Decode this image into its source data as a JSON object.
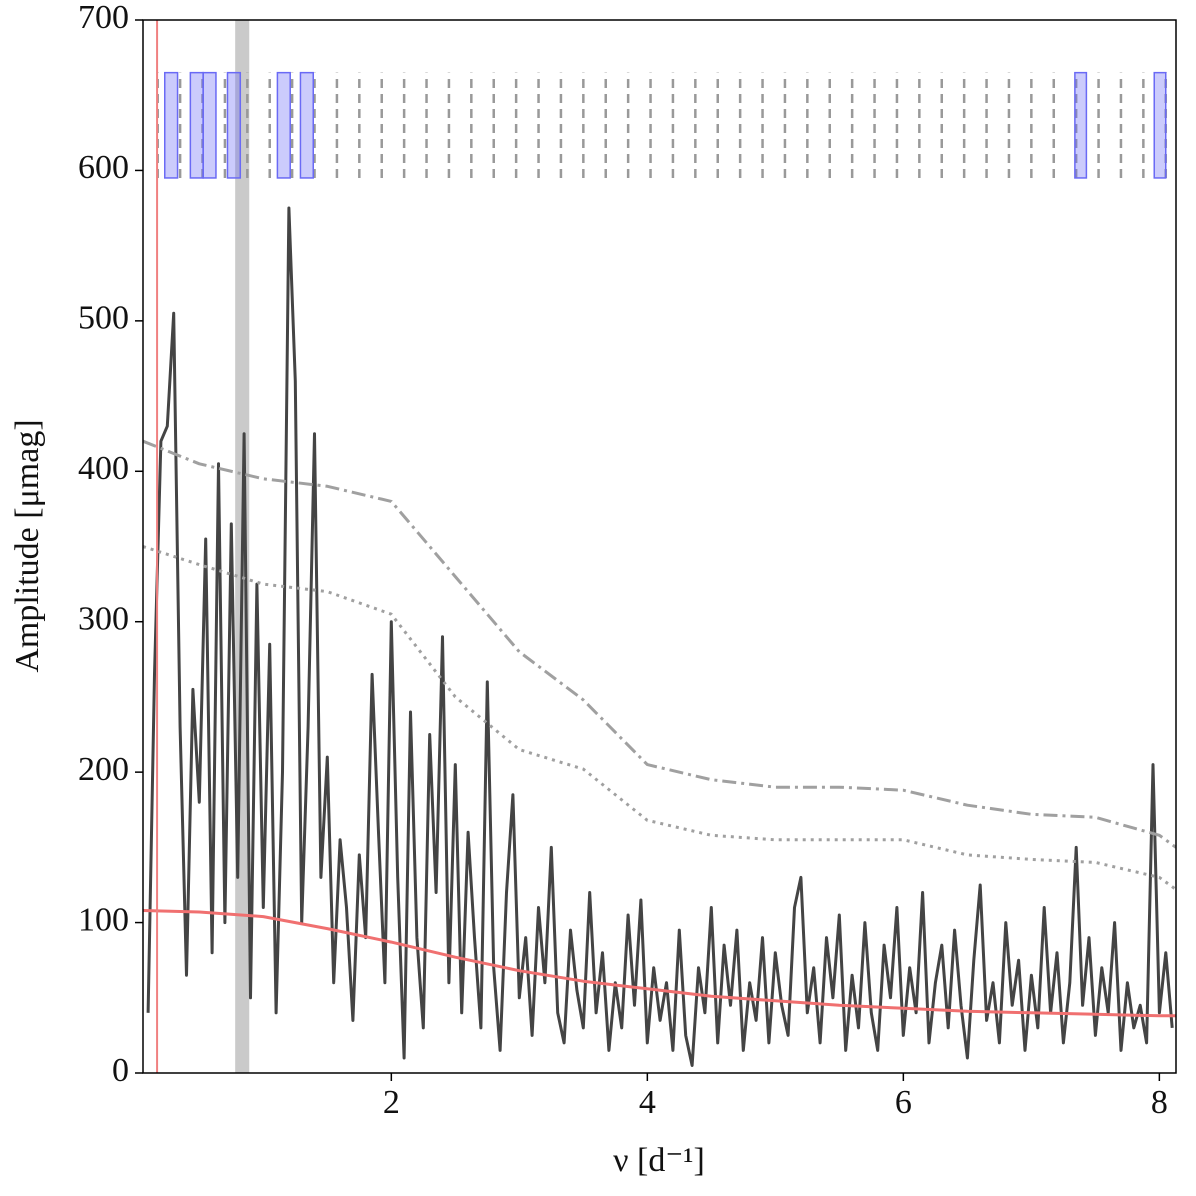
{
  "chart_data": {
    "type": "line",
    "xlabel": "ν [d⁻¹]",
    "ylabel": "Amplitude [μmag]",
    "xlim": [
      0.06,
      8.13
    ],
    "ylim": [
      0,
      700
    ],
    "xticks": [
      2,
      4,
      6,
      8
    ],
    "yticks": [
      0,
      100,
      200,
      300,
      400,
      500,
      600,
      700
    ],
    "vline": {
      "x": 0.17,
      "color": "#f08080"
    },
    "vspan": {
      "x": [
        0.78,
        0.89
      ],
      "color": "#bdbdbd"
    },
    "marker_ylim": [
      595,
      665
    ],
    "harmonics": {
      "color": "#999999",
      "x": [
        0.175,
        0.35,
        0.525,
        0.7,
        0.875,
        1.05,
        1.225,
        1.4,
        1.575,
        1.75,
        1.925,
        2.1,
        2.275,
        2.45,
        2.625,
        2.8,
        2.975,
        3.15,
        3.325,
        3.5,
        3.675,
        3.85,
        4.025,
        4.2,
        4.375,
        4.55,
        4.725,
        4.9,
        5.075,
        5.25,
        5.425,
        5.6,
        5.775,
        5.95,
        6.125,
        6.3,
        6.475,
        6.65,
        6.825,
        7.0,
        7.175,
        7.35,
        7.525,
        7.7,
        7.875,
        8.05
      ]
    },
    "boxes": {
      "color": "#6a6af5",
      "ranges": [
        [
          0.23,
          0.33
        ],
        [
          0.43,
          0.53
        ],
        [
          0.53,
          0.63
        ],
        [
          0.72,
          0.82
        ],
        [
          1.11,
          1.21
        ],
        [
          1.29,
          1.39
        ],
        [
          7.34,
          7.43
        ],
        [
          7.96,
          8.05
        ]
      ]
    },
    "series": [
      {
        "color": "#444444",
        "style": "solid",
        "width": 3,
        "x": [
          0.1,
          0.15,
          0.2,
          0.25,
          0.3,
          0.35,
          0.4,
          0.45,
          0.5,
          0.55,
          0.6,
          0.65,
          0.7,
          0.75,
          0.8,
          0.85,
          0.9,
          0.95,
          1.0,
          1.05,
          1.1,
          1.15,
          1.2,
          1.25,
          1.3,
          1.35,
          1.4,
          1.45,
          1.5,
          1.55,
          1.6,
          1.65,
          1.7,
          1.75,
          1.8,
          1.85,
          1.9,
          1.95,
          2.0,
          2.05,
          2.1,
          2.15,
          2.2,
          2.25,
          2.3,
          2.35,
          2.4,
          2.45,
          2.5,
          2.55,
          2.6,
          2.65,
          2.7,
          2.75,
          2.8,
          2.85,
          2.9,
          2.95,
          3.0,
          3.05,
          3.1,
          3.15,
          3.2,
          3.25,
          3.3,
          3.35,
          3.4,
          3.45,
          3.5,
          3.55,
          3.6,
          3.65,
          3.7,
          3.75,
          3.8,
          3.85,
          3.9,
          3.95,
          4.0,
          4.05,
          4.1,
          4.15,
          4.2,
          4.25,
          4.3,
          4.35,
          4.4,
          4.45,
          4.5,
          4.55,
          4.6,
          4.65,
          4.7,
          4.75,
          4.8,
          4.85,
          4.9,
          4.95,
          5.0,
          5.05,
          5.1,
          5.15,
          5.2,
          5.25,
          5.3,
          5.35,
          5.4,
          5.45,
          5.5,
          5.55,
          5.6,
          5.65,
          5.7,
          5.75,
          5.8,
          5.85,
          5.9,
          5.95,
          6.0,
          6.05,
          6.1,
          6.15,
          6.2,
          6.25,
          6.3,
          6.35,
          6.4,
          6.45,
          6.5,
          6.55,
          6.6,
          6.65,
          6.7,
          6.75,
          6.8,
          6.85,
          6.9,
          6.95,
          7.0,
          7.05,
          7.1,
          7.15,
          7.2,
          7.25,
          7.3,
          7.35,
          7.4,
          7.45,
          7.5,
          7.55,
          7.6,
          7.65,
          7.7,
          7.75,
          7.8,
          7.85,
          7.9,
          7.95,
          8.0,
          8.05,
          8.1
        ],
        "values": [
          40,
          265,
          420,
          430,
          505,
          230,
          65,
          255,
          180,
          355,
          80,
          405,
          100,
          365,
          130,
          425,
          50,
          325,
          110,
          285,
          40,
          200,
          575,
          460,
          100,
          230,
          425,
          130,
          210,
          60,
          155,
          110,
          35,
          145,
          90,
          265,
          160,
          60,
          300,
          130,
          10,
          240,
          90,
          30,
          225,
          120,
          290,
          60,
          205,
          40,
          160,
          90,
          30,
          260,
          70,
          15,
          120,
          185,
          50,
          90,
          25,
          110,
          60,
          150,
          40,
          20,
          95,
          55,
          30,
          120,
          40,
          80,
          15,
          60,
          30,
          105,
          45,
          115,
          20,
          70,
          35,
          60,
          15,
          95,
          25,
          5,
          70,
          40,
          110,
          20,
          85,
          45,
          95,
          15,
          60,
          35,
          90,
          20,
          80,
          45,
          25,
          110,
          130,
          40,
          70,
          20,
          90,
          50,
          105,
          15,
          65,
          30,
          100,
          40,
          15,
          85,
          50,
          110,
          25,
          70,
          40,
          120,
          20,
          60,
          85,
          30,
          95,
          45,
          10,
          75,
          125,
          35,
          60,
          20,
          100,
          45,
          75,
          15,
          65,
          30,
          110,
          40,
          80,
          20,
          60,
          150,
          45,
          90,
          25,
          70,
          40,
          100,
          15,
          60,
          30,
          45,
          20,
          205,
          40,
          80,
          30
        ]
      },
      {
        "color": "#a0a0a0",
        "style": "dashdot",
        "width": 3,
        "x": [
          0.06,
          0.5,
          1,
          1.5,
          2,
          2.5,
          3,
          3.5,
          4,
          4.5,
          5,
          5.5,
          6,
          6.5,
          7,
          7.5,
          8,
          8.13
        ],
        "values": [
          420,
          405,
          395,
          390,
          380,
          330,
          280,
          248,
          205,
          195,
          190,
          190,
          188,
          178,
          172,
          170,
          158,
          150
        ]
      },
      {
        "color": "#a0a0a0",
        "style": "dotted",
        "width": 3,
        "x": [
          0.06,
          0.5,
          1,
          1.5,
          2,
          2.5,
          3,
          3.5,
          4,
          4.5,
          5,
          5.5,
          6,
          6.5,
          7,
          7.5,
          8,
          8.13
        ],
        "values": [
          350,
          338,
          325,
          320,
          305,
          250,
          215,
          202,
          168,
          158,
          155,
          155,
          155,
          145,
          142,
          140,
          130,
          122
        ]
      },
      {
        "color": "#f07070",
        "style": "solid",
        "width": 3,
        "x": [
          0.06,
          0.5,
          1,
          1.5,
          2,
          2.5,
          3,
          3.5,
          4,
          4.5,
          5,
          5.5,
          6,
          6.5,
          7,
          7.5,
          8,
          8.13
        ],
        "values": [
          108,
          107,
          104,
          96,
          87,
          77,
          68,
          61,
          56,
          51,
          48,
          45,
          43,
          41,
          40,
          39,
          38,
          38
        ]
      }
    ]
  }
}
